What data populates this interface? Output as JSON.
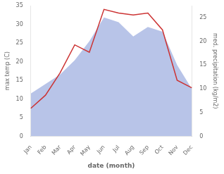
{
  "chart_data": {
    "type": "line",
    "xlabel": "date (month)",
    "ylabel": "max temp (C)",
    "y2label": "med. precipitation (kg/m2)",
    "categories": [
      "Jan",
      "Feb",
      "Mar",
      "Apr",
      "May",
      "Jun",
      "Jul",
      "Aug",
      "Sep",
      "Oct",
      "Nov",
      "Dec"
    ],
    "series": [
      {
        "type": "area",
        "axis": "y2",
        "color": "#b8c4e8",
        "values": [
          9,
          11,
          13,
          16,
          20,
          25,
          24,
          21,
          23,
          22,
          15,
          10
        ]
      },
      {
        "type": "line",
        "color": "#cc3333",
        "values": [
          7.5,
          11.0,
          17.0,
          24.5,
          22.5,
          34.0,
          33.0,
          32.5,
          33.0,
          28.5,
          15.0,
          13.0
        ]
      }
    ],
    "ylim": [
      0,
      35
    ],
    "yticks": [
      0,
      5,
      10,
      15,
      20,
      25,
      30,
      35
    ],
    "y2lim": [
      0,
      27.5
    ],
    "y2ticks": [
      0,
      5,
      10,
      15,
      20,
      25
    ],
    "grid": false
  }
}
